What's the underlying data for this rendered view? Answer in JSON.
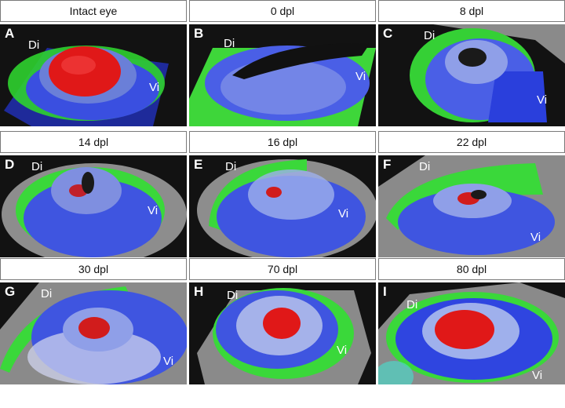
{
  "panels": [
    {
      "title": "Intact eye",
      "letter": "A",
      "di": "Di",
      "vi": "Vi"
    },
    {
      "title": "0 dpl",
      "letter": "B",
      "di": "Di",
      "vi": "Vi"
    },
    {
      "title": "8 dpl",
      "letter": "C",
      "di": "Di",
      "vi": "Vi"
    },
    {
      "title": "14 dpl",
      "letter": "D",
      "di": "Di",
      "vi": "Vi"
    },
    {
      "title": "16 dpl",
      "letter": "E",
      "di": "Di",
      "vi": "Vi"
    },
    {
      "title": "22 dpl",
      "letter": "F",
      "di": "Di",
      "vi": "Vi"
    },
    {
      "title": "30 dpl",
      "letter": "G",
      "di": "Di",
      "vi": "Vi"
    },
    {
      "title": "70 dpl",
      "letter": "H",
      "di": "Di",
      "vi": "Vi"
    },
    {
      "title": "80 dpl",
      "letter": "I",
      "di": "Di",
      "vi": "Vi"
    }
  ],
  "colors": {
    "background": "#121212",
    "dorsal_iris": "#3ddc3a",
    "ventral_iris": "#3a4fe0",
    "lens": "#e01818",
    "tissue": "#9a9a9a"
  }
}
